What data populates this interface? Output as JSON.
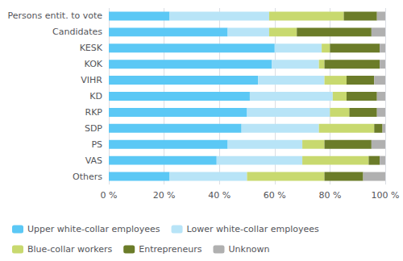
{
  "chart_data": {
    "type": "bar",
    "orientation": "horizontal",
    "stacked": true,
    "categories": [
      "Persons entit. to vote",
      "Candidates",
      "KESK",
      "KOK",
      "VIHR",
      "KD",
      "RKP",
      "SDP",
      "PS",
      "VAS",
      "Others"
    ],
    "series": [
      {
        "name": "Upper white-collar employees",
        "color": "#5bc8f5",
        "values": [
          22,
          43,
          60,
          59,
          54,
          51,
          50,
          48,
          43,
          39,
          22
        ]
      },
      {
        "name": "Lower white-collar employees",
        "color": "#b8e4f7",
        "values": [
          36,
          15,
          17,
          17,
          24,
          30,
          30,
          28,
          27,
          31,
          28
        ]
      },
      {
        "name": "Blue-collar workers",
        "color": "#c8d96f",
        "values": [
          27,
          10,
          3,
          2,
          8,
          5,
          7,
          20,
          8,
          24,
          28
        ]
      },
      {
        "name": "Entrepreneurs",
        "color": "#6b7c29",
        "values": [
          12,
          27,
          18,
          20,
          10,
          11,
          10,
          3,
          17,
          4,
          14
        ]
      },
      {
        "name": "Unknown",
        "color": "#b0b0b0",
        "values": [
          3,
          5,
          2,
          2,
          4,
          3,
          3,
          1,
          5,
          2,
          8
        ]
      }
    ],
    "xlim": [
      0,
      100
    ],
    "xticks": [
      {
        "value": 0,
        "label": "0 %"
      },
      {
        "value": 20,
        "label": "20 %"
      },
      {
        "value": 40,
        "label": "40 %"
      },
      {
        "value": 60,
        "label": "60 %"
      },
      {
        "value": 80,
        "label": "80 %"
      },
      {
        "value": 100,
        "label": "100 %"
      }
    ],
    "grid": true,
    "legend": "bottom"
  }
}
